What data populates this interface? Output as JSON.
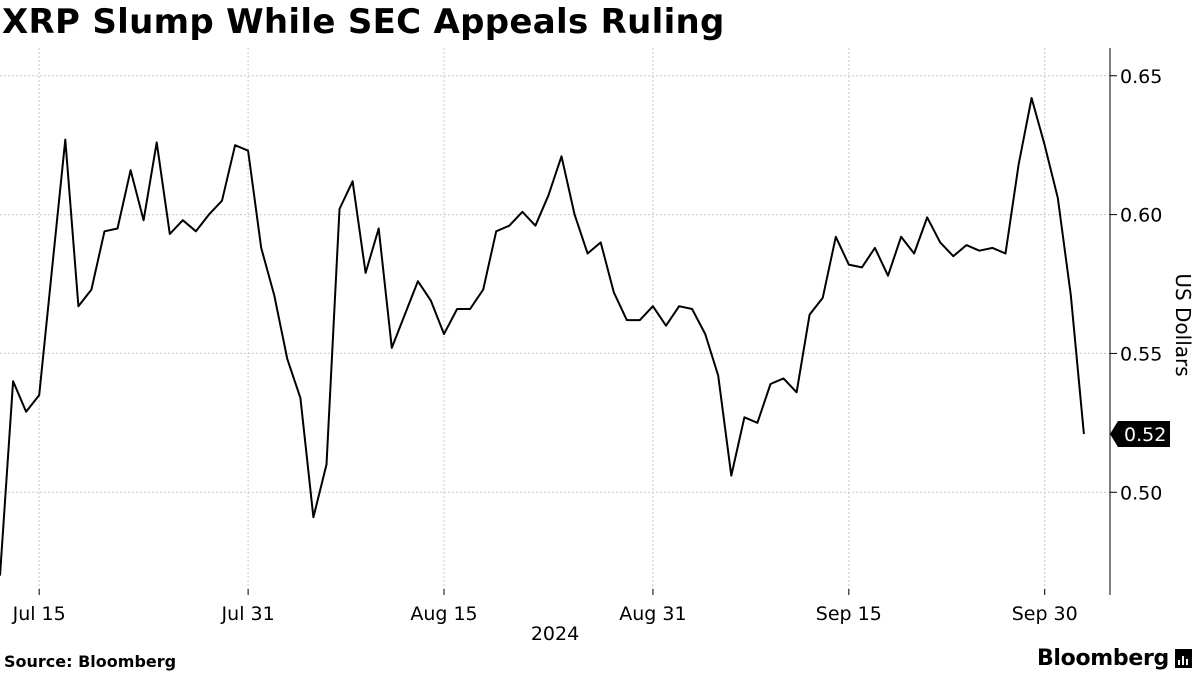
{
  "title": "XRP Slump While SEC Appeals Ruling",
  "source": "Source: Bloomberg",
  "brand": "Bloomberg",
  "chart_data": {
    "type": "line",
    "title": "XRP Slump While SEC Appeals Ruling",
    "ylabel": "US Dollars",
    "xlabel": "2024",
    "ylim": [
      0.463,
      0.66
    ],
    "y_ticks": [
      "0.50",
      "0.55",
      "0.60",
      "0.65"
    ],
    "y_tick_values": [
      0.5,
      0.55,
      0.6,
      0.65
    ],
    "x_ticks": [
      "Jul 15",
      "Jul 31",
      "Aug 15",
      "Aug 31",
      "Sep 15",
      "Sep 30"
    ],
    "x_tick_dates": [
      "2024-07-15",
      "2024-07-31",
      "2024-08-15",
      "2024-08-31",
      "2024-09-15",
      "2024-09-30"
    ],
    "last_value_label": "0.52",
    "grid": true,
    "line_color": "#000000",
    "series": [
      {
        "x": [
          "2024-07-12",
          "2024-07-13",
          "2024-07-14",
          "2024-07-15",
          "2024-07-16",
          "2024-07-17",
          "2024-07-18",
          "2024-07-19",
          "2024-07-20",
          "2024-07-21",
          "2024-07-22",
          "2024-07-23",
          "2024-07-24",
          "2024-07-25",
          "2024-07-26",
          "2024-07-27",
          "2024-07-28",
          "2024-07-29",
          "2024-07-30",
          "2024-07-31",
          "2024-08-01",
          "2024-08-02",
          "2024-08-03",
          "2024-08-04",
          "2024-08-05",
          "2024-08-06",
          "2024-08-07",
          "2024-08-08",
          "2024-08-09",
          "2024-08-10",
          "2024-08-11",
          "2024-08-12",
          "2024-08-13",
          "2024-08-14",
          "2024-08-15",
          "2024-08-16",
          "2024-08-17",
          "2024-08-18",
          "2024-08-19",
          "2024-08-20",
          "2024-08-21",
          "2024-08-22",
          "2024-08-23",
          "2024-08-24",
          "2024-08-25",
          "2024-08-26",
          "2024-08-27",
          "2024-08-28",
          "2024-08-29",
          "2024-08-30",
          "2024-08-31",
          "2024-09-01",
          "2024-09-02",
          "2024-09-03",
          "2024-09-04",
          "2024-09-05",
          "2024-09-06",
          "2024-09-07",
          "2024-09-08",
          "2024-09-09",
          "2024-09-10",
          "2024-09-11",
          "2024-09-12",
          "2024-09-13",
          "2024-09-14",
          "2024-09-15",
          "2024-09-16",
          "2024-09-17",
          "2024-09-18",
          "2024-09-19",
          "2024-09-20",
          "2024-09-21",
          "2024-09-22",
          "2024-09-23",
          "2024-09-24",
          "2024-09-25",
          "2024-09-26",
          "2024-09-27",
          "2024-09-28",
          "2024-09-29",
          "2024-09-30",
          "2024-10-01",
          "2024-10-02",
          "2024-10-03"
        ],
        "values": [
          0.47,
          0.54,
          0.529,
          0.535,
          0.581,
          0.627,
          0.567,
          0.573,
          0.594,
          0.595,
          0.616,
          0.598,
          0.626,
          0.593,
          0.598,
          0.594,
          0.6,
          0.605,
          0.625,
          0.623,
          0.588,
          0.571,
          0.548,
          0.534,
          0.491,
          0.51,
          0.602,
          0.612,
          0.579,
          0.595,
          0.552,
          0.564,
          0.576,
          0.569,
          0.557,
          0.566,
          0.566,
          0.573,
          0.594,
          0.596,
          0.601,
          0.596,
          0.607,
          0.621,
          0.6,
          0.586,
          0.59,
          0.572,
          0.562,
          0.562,
          0.567,
          0.56,
          0.567,
          0.566,
          0.557,
          0.542,
          0.506,
          0.527,
          0.525,
          0.539,
          0.541,
          0.536,
          0.564,
          0.57,
          0.592,
          0.582,
          0.581,
          0.588,
          0.578,
          0.592,
          0.586,
          0.599,
          0.59,
          0.585,
          0.589,
          0.587,
          0.588,
          0.586,
          0.618,
          0.642,
          0.625,
          0.606,
          0.571,
          0.521
        ]
      }
    ]
  }
}
